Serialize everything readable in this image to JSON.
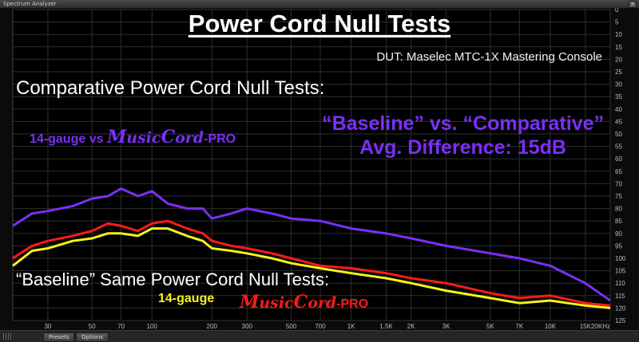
{
  "window": {
    "title": "Spectrum Analyzer",
    "close_label": "×",
    "presets_label": "Presets",
    "options_label": "Options"
  },
  "overlay": {
    "title": "Power Cord Null Tests",
    "dut": "DUT: Maselec MTC-1X Mastering Console",
    "comparative_heading": "Comparative Power Cord Null Tests:",
    "comparative_sub_prefix": "14-gauge vs ",
    "brand_m": "M",
    "brand_usic": "usic",
    "brand_c": "C",
    "brand_ord": "ord",
    "brand_suffix": "-PRO",
    "big_line1": "“Baseline” vs. “Comparative”",
    "big_line2": "Avg. Difference: 15dB",
    "baseline_heading": "“Baseline” Same Power Cord Null Tests:",
    "legend_14gauge": "14-gauge"
  },
  "colors": {
    "purple": "#7b2ff7",
    "red": "#ff1a1a",
    "yellow": "#f7f21a",
    "grid": "#2f2f2f",
    "axis_text": "#bdbdbd"
  },
  "chart_data": {
    "type": "line",
    "xscale": "log",
    "xlim": [
      20,
      20000
    ],
    "ylim": [
      0,
      125
    ],
    "y_inverted": true,
    "y_ticks": [
      0,
      5,
      10,
      15,
      20,
      25,
      30,
      35,
      40,
      45,
      50,
      55,
      60,
      65,
      70,
      75,
      80,
      85,
      90,
      95,
      100,
      105,
      110,
      115,
      120,
      125
    ],
    "x_ticks": [
      {
        "v": 30,
        "label": "30"
      },
      {
        "v": 50,
        "label": "50"
      },
      {
        "v": 70,
        "label": "70"
      },
      {
        "v": 100,
        "label": "100"
      },
      {
        "v": 200,
        "label": "200"
      },
      {
        "v": 300,
        "label": "300"
      },
      {
        "v": 500,
        "label": "500"
      },
      {
        "v": 700,
        "label": "700"
      },
      {
        "v": 1000,
        "label": "1K"
      },
      {
        "v": 1500,
        "label": "1.5K"
      },
      {
        "v": 2000,
        "label": "2K"
      },
      {
        "v": 3000,
        "label": "3K"
      },
      {
        "v": 5000,
        "label": "5K"
      },
      {
        "v": 7000,
        "label": "7K"
      },
      {
        "v": 10000,
        "label": "10K"
      },
      {
        "v": 15000,
        "label": "15K"
      },
      {
        "v": 20000,
        "label": "20KHz"
      }
    ],
    "grid": true,
    "series": [
      {
        "color": "#7b2ff7",
        "x": [
          20,
          25,
          30,
          40,
          50,
          60,
          70,
          85,
          100,
          120,
          150,
          180,
          200,
          250,
          300,
          400,
          500,
          700,
          1000,
          1500,
          2000,
          3000,
          5000,
          7000,
          10000,
          15000,
          20000
        ],
        "y": [
          87,
          82,
          81,
          79,
          76,
          75,
          72,
          75,
          73,
          78,
          80,
          80,
          84,
          82,
          80,
          82,
          84,
          85,
          88,
          90,
          92,
          95,
          98,
          100,
          103,
          110,
          117
        ]
      },
      {
        "color": "#ff1a1a",
        "x": [
          20,
          25,
          30,
          40,
          50,
          60,
          70,
          85,
          100,
          120,
          150,
          180,
          200,
          250,
          300,
          400,
          500,
          700,
          1000,
          1500,
          2000,
          3000,
          5000,
          7000,
          10000,
          15000,
          20000
        ],
        "y": [
          100,
          95,
          93,
          91,
          89,
          86,
          87,
          89,
          86,
          85,
          88,
          90,
          93,
          95,
          96,
          98,
          100,
          103,
          104,
          106,
          108,
          110,
          114,
          116,
          115,
          118,
          119
        ]
      },
      {
        "color": "#f7f21a",
        "x": [
          20,
          25,
          30,
          40,
          50,
          60,
          70,
          85,
          100,
          120,
          150,
          180,
          200,
          250,
          300,
          400,
          500,
          700,
          1000,
          1500,
          2000,
          3000,
          5000,
          7000,
          10000,
          15000,
          20000
        ],
        "y": [
          103,
          97,
          96,
          93,
          92,
          90,
          90,
          91,
          88,
          88,
          91,
          93,
          96,
          97,
          98,
          100,
          102,
          104,
          106,
          108,
          110,
          113,
          116,
          118,
          117,
          119,
          120
        ]
      }
    ]
  }
}
